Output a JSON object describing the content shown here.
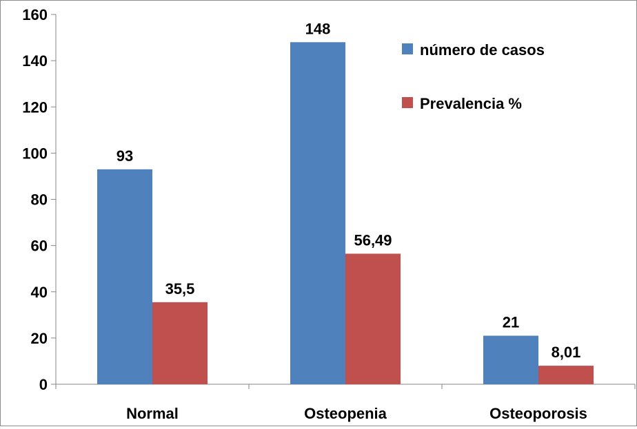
{
  "chart_data": {
    "type": "bar",
    "title": "",
    "xlabel": "",
    "ylabel": "",
    "categories": [
      "Normal",
      "Osteopenia",
      "Osteoporosis"
    ],
    "series": [
      {
        "name": "número de casos",
        "color": "#4F81BD",
        "values": [
          93,
          148,
          21
        ],
        "labels": [
          "93",
          "148",
          "21"
        ]
      },
      {
        "name": "Prevalencia %",
        "color": "#C0504D",
        "values": [
          35.5,
          56.49,
          8.01
        ],
        "labels": [
          "35,5",
          "56,49",
          "8,01"
        ]
      }
    ],
    "ylim": [
      0,
      160
    ],
    "yticks": [
      0,
      20,
      40,
      60,
      80,
      100,
      120,
      140,
      160
    ],
    "grid": false,
    "legend": "top-right",
    "axis_color": "#868686"
  }
}
